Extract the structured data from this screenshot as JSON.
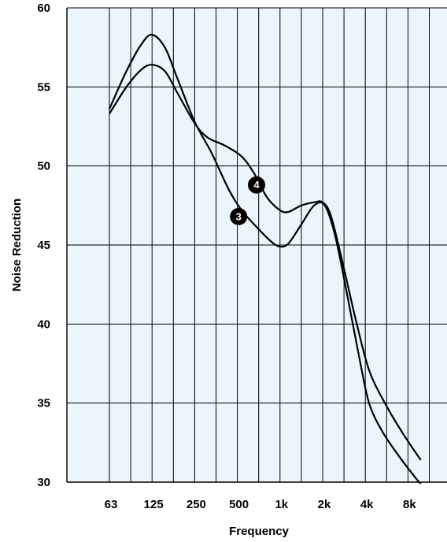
{
  "chart_data": {
    "type": "line",
    "xlabel": "Frequency",
    "ylabel": "Noise Reduction",
    "categories": [
      "63",
      "125",
      "250",
      "500",
      "1k",
      "2k",
      "4k",
      "8k"
    ],
    "ylim": [
      30,
      60
    ],
    "yticks": [
      30,
      35,
      40,
      45,
      50,
      55,
      60
    ],
    "grid": true,
    "colors": {
      "plot_background": "#eaf6fb",
      "grid": "#000000",
      "line": "#000000",
      "marker": "#000000"
    },
    "series": [
      {
        "name": "3",
        "points": [
          [
            0,
            53.6
          ],
          [
            0.4,
            56.0
          ],
          [
            0.75,
            57.7
          ],
          [
            1.0,
            58.3
          ],
          [
            1.3,
            57.5
          ],
          [
            1.6,
            55.5
          ],
          [
            2.0,
            52.8
          ],
          [
            2.4,
            50.8
          ],
          [
            2.8,
            48.5
          ],
          [
            3.1,
            47.2
          ],
          [
            3.5,
            46.0
          ],
          [
            3.8,
            45.2
          ],
          [
            4.0,
            44.9
          ],
          [
            4.2,
            45.1
          ],
          [
            4.5,
            46.3
          ],
          [
            4.8,
            47.5
          ],
          [
            5.05,
            47.5
          ],
          [
            5.3,
            45.5
          ],
          [
            5.6,
            41.5
          ],
          [
            5.9,
            37.3
          ],
          [
            6.1,
            34.9
          ],
          [
            6.4,
            33.2
          ],
          [
            6.8,
            31.6
          ],
          [
            7.2,
            30.2
          ],
          [
            7.3,
            29.9
          ]
        ]
      },
      {
        "name": "4",
        "points": [
          [
            0,
            53.3
          ],
          [
            0.4,
            55.0
          ],
          [
            0.75,
            56.1
          ],
          [
            1.0,
            56.4
          ],
          [
            1.3,
            56.0
          ],
          [
            1.6,
            54.6
          ],
          [
            2.0,
            52.7
          ],
          [
            2.3,
            51.8
          ],
          [
            2.7,
            51.3
          ],
          [
            3.1,
            50.6
          ],
          [
            3.4,
            49.5
          ],
          [
            3.7,
            48.0
          ],
          [
            4.0,
            47.2
          ],
          [
            4.2,
            47.1
          ],
          [
            4.5,
            47.5
          ],
          [
            4.8,
            47.7
          ],
          [
            5.0,
            47.7
          ],
          [
            5.2,
            46.8
          ],
          [
            5.5,
            43.5
          ],
          [
            5.8,
            40.0
          ],
          [
            6.1,
            37.0
          ],
          [
            6.5,
            34.8
          ],
          [
            6.9,
            33.0
          ],
          [
            7.3,
            31.4
          ]
        ]
      }
    ],
    "series_labels": [
      {
        "text": "3",
        "x": 3.03,
        "y": 46.8
      },
      {
        "text": "4",
        "x": 3.45,
        "y": 48.8
      }
    ]
  }
}
